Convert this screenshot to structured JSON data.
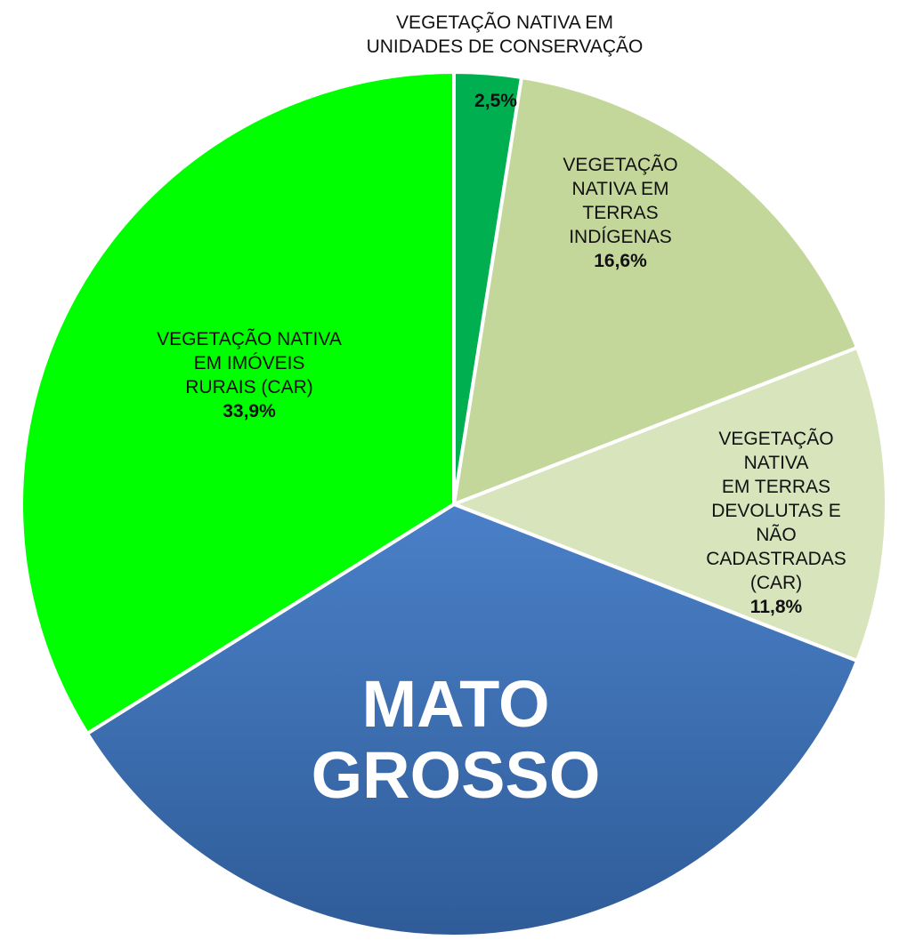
{
  "chart_data": {
    "type": "pie",
    "categories": [
      "VEGETAÇÃO NATIVA EM\nUNIDADES DE CONSERVAÇÃO",
      "VEGETAÇÃO\nNATIVA EM\nTERRAS\nINDÍGENAS",
      "VEGETAÇÃO NATIVA\nEM TERRAS\nDEVOLUTAS E NÃO\nCADASTRADAS (CAR)",
      "MATO GROSSO",
      "VEGETAÇÃO NATIVA\nEM IMÓVEIS\nRURAIS (CAR)"
    ],
    "values": [
      2.5,
      16.6,
      11.8,
      35.2,
      33.9
    ],
    "value_labels": [
      "2,5%",
      "16,6%",
      "11,8%",
      null,
      "33,9%"
    ],
    "colors": [
      "#00b050",
      "#c4d79b",
      "#d8e4bc",
      "#3c70b8",
      "#00ff00"
    ]
  }
}
